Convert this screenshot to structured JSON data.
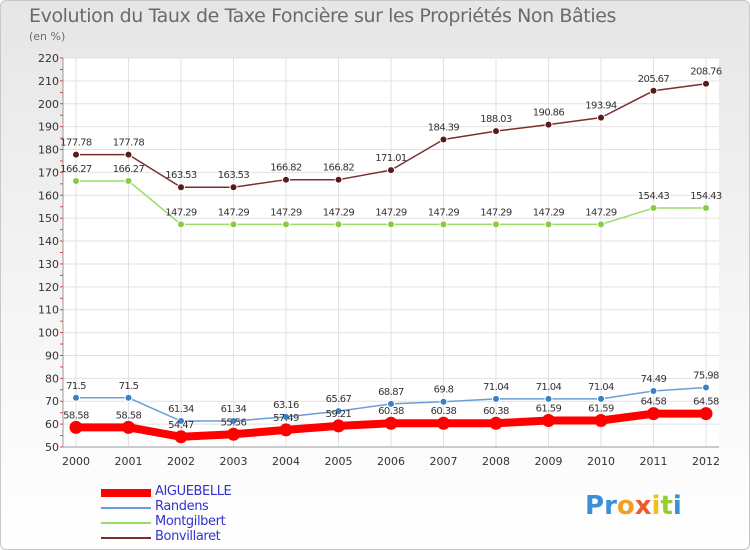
{
  "title": "Evolution du Taux de Taxe Foncière sur les Propriétés Non Bâties",
  "unit_label": "(en %)",
  "chart_data": {
    "type": "line",
    "title": "Evolution du Taux de Taxe Foncière sur les Propriétés Non Bâties",
    "ylabel": "(en %)",
    "x": [
      "2000",
      "2001",
      "2002",
      "2003",
      "2004",
      "2005",
      "2006",
      "2007",
      "2008",
      "2009",
      "2010",
      "2011",
      "2012"
    ],
    "ylim": [
      50,
      220
    ],
    "yticks": [
      50,
      60,
      70,
      80,
      90,
      100,
      110,
      120,
      130,
      140,
      150,
      160,
      170,
      180,
      190,
      200,
      210,
      220
    ],
    "grid": true,
    "legend_position": "bottom-left",
    "series": [
      {
        "name": "AIGUEBELLE",
        "color": "#ff0000",
        "values": [
          58.58,
          58.58,
          54.47,
          55.56,
          57.49,
          59.21,
          60.38,
          60.38,
          60.38,
          61.59,
          61.59,
          64.58,
          64.58
        ],
        "labels": [
          "58.58",
          "58.58",
          "54.47",
          "55.56",
          "57.49",
          "59.21",
          "60.38",
          "60.38",
          "60.38",
          "61.59",
          "61.59",
          "64.58",
          "64.58"
        ]
      },
      {
        "name": "Randens",
        "color": "#6b9ed4",
        "values": [
          71.5,
          71.5,
          61.34,
          61.34,
          63.16,
          65.67,
          68.87,
          69.8,
          71.04,
          71.04,
          71.04,
          74.49,
          75.98
        ],
        "labels": [
          "71.5",
          "71.5",
          "61.34",
          "61.34",
          "63.16",
          "65.67",
          "68.87",
          "69.8",
          "71.04",
          "71.04",
          "71.04",
          "74.49",
          "75.98"
        ]
      },
      {
        "name": "Montgilbert",
        "color": "#99dd66",
        "values": [
          166.27,
          166.27,
          147.29,
          147.29,
          147.29,
          147.29,
          147.29,
          147.29,
          147.29,
          147.29,
          147.29,
          154.43,
          154.43
        ],
        "labels": [
          "166.27",
          "166.27",
          "147.29",
          "147.29",
          "147.29",
          "147.29",
          "147.29",
          "147.29",
          "147.29",
          "147.29",
          "147.29",
          "154.43",
          "154.43"
        ]
      },
      {
        "name": "Bonvillaret",
        "color": "#7a2f2f",
        "values": [
          177.78,
          177.78,
          163.53,
          163.53,
          166.82,
          166.82,
          171.01,
          184.39,
          188.03,
          190.86,
          193.94,
          205.67,
          208.76
        ],
        "labels": [
          "177.78",
          "177.78",
          "163.53",
          "163.53",
          "166.82",
          "166.82",
          "171.01",
          "184.39",
          "188.03",
          "190.86",
          "193.94",
          "205.67",
          "208.76"
        ]
      }
    ]
  },
  "legend": [
    {
      "name": "AIGUEBELLE",
      "color": "#ff0000",
      "text_color": "#3333cc"
    },
    {
      "name": "Randens",
      "color": "#6b9ed4",
      "text_color": "#3333cc"
    },
    {
      "name": "Montgilbert",
      "color": "#99dd66",
      "text_color": "#3333cc"
    },
    {
      "name": "Bonvillaret",
      "color": "#7a2f2f",
      "text_color": "#3333cc"
    }
  ],
  "logo": {
    "letters": [
      "P",
      "r",
      "o",
      "x",
      "i",
      "t",
      "i"
    ],
    "colors": [
      "#3a8fd9",
      "#3a8fd9",
      "#f0a020",
      "#f05a28",
      "#f0c020",
      "#99cc33",
      "#3a8fd9"
    ]
  }
}
